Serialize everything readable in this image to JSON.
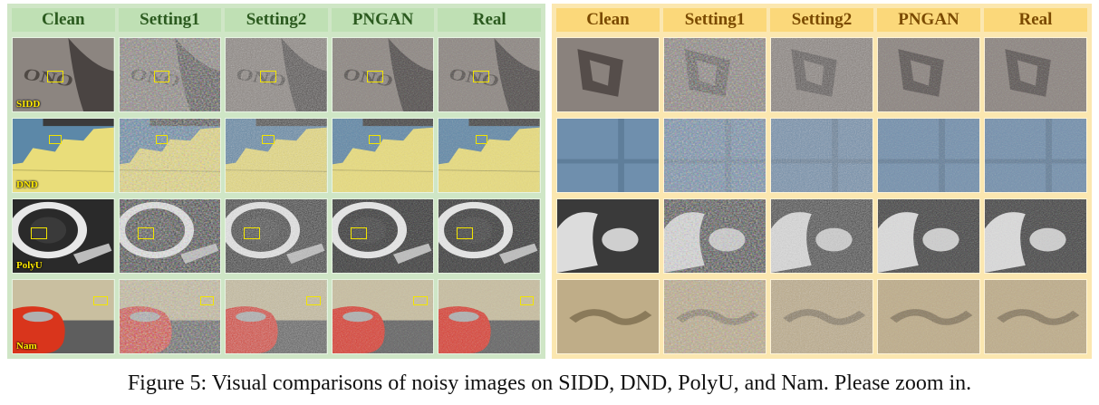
{
  "columns": [
    "Clean",
    "Setting1",
    "Setting2",
    "PNGAN",
    "Real"
  ],
  "datasets": [
    "SIDD",
    "DND",
    "PolyU",
    "Nam"
  ],
  "caption": "Figure 5: Visual comparisons of noisy images on SIDD, DND, PolyU, and Nam. Please zoom in.",
  "colors": {
    "left_panel_bg": "#cfe6c6",
    "right_panel_bg": "#fbe7b0",
    "roi_box": "#f2e400"
  }
}
